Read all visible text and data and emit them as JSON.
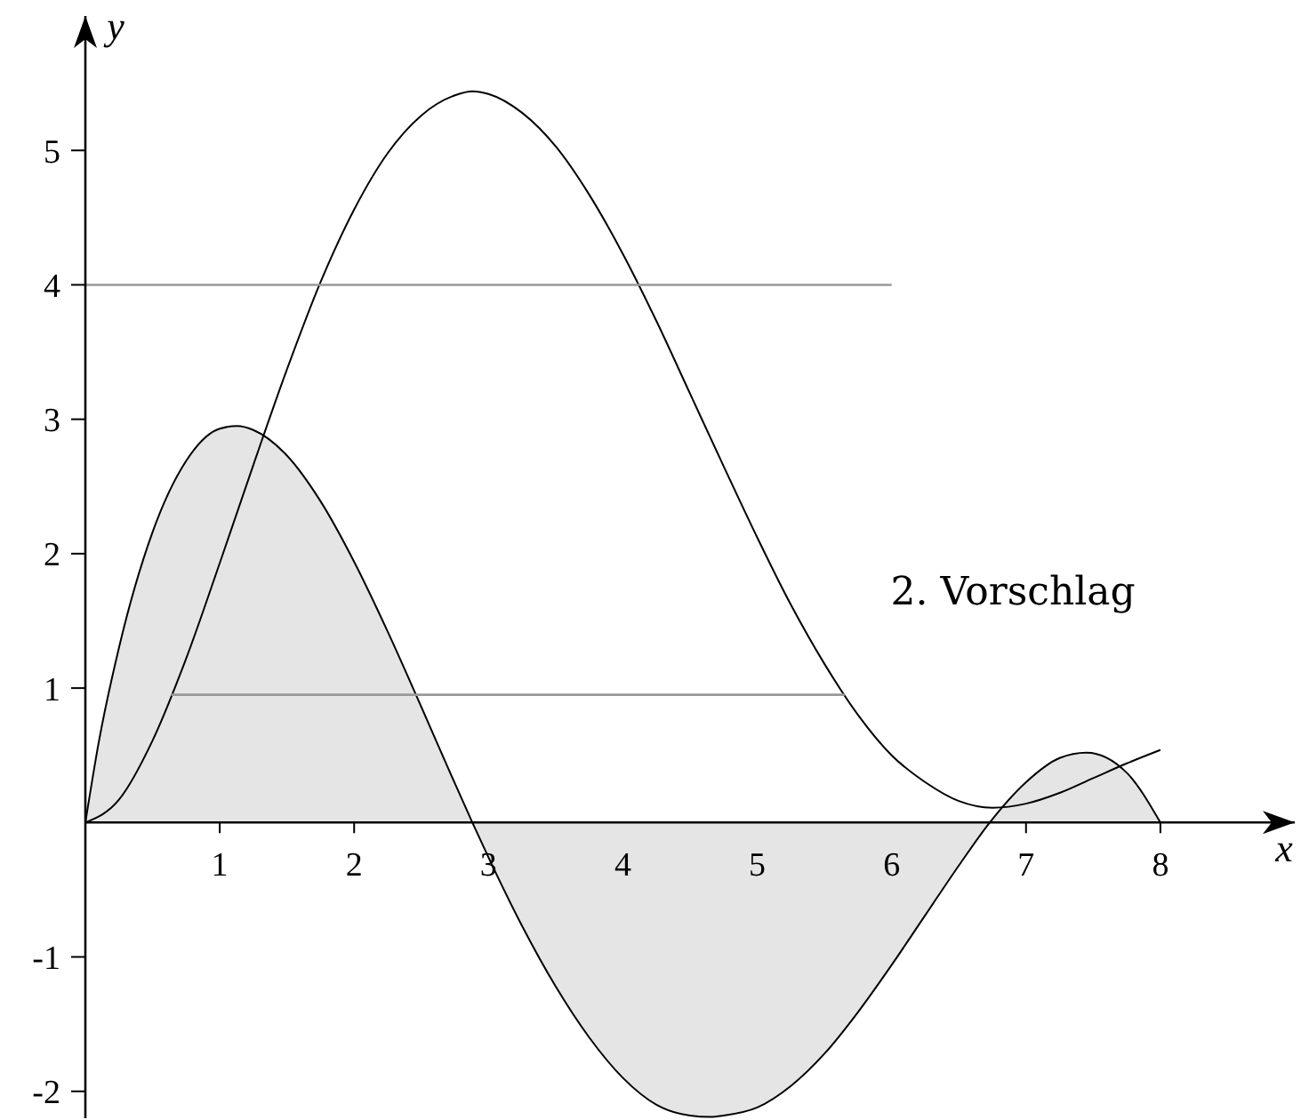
{
  "chart_data": {
    "type": "line",
    "xlabel": "x",
    "ylabel": "y",
    "annotations": [
      "2. Vorschlag"
    ],
    "xlim": [
      0,
      9
    ],
    "ylim": [
      -2.2,
      6
    ],
    "xticks": [
      1,
      2,
      3,
      4,
      5,
      6,
      7,
      8
    ],
    "yticks": [
      -2,
      -1,
      1,
      2,
      3,
      4,
      5
    ],
    "series": [
      {
        "type": "area",
        "color": "#e5e5e5",
        "x": [
          0,
          0.1,
          0.25,
          0.5,
          0.75,
          1,
          1.13,
          1.25,
          1.5,
          1.75,
          2,
          2.25,
          2.5,
          2.75,
          2.88,
          3,
          3.25,
          3.5,
          3.75,
          4,
          4.25,
          4.5,
          4.65,
          4.75,
          5,
          5.25,
          5.5,
          5.75,
          6,
          6.25,
          6.5,
          6.73,
          7,
          7.25,
          7.45,
          7.75,
          8
        ],
        "values": [
          0,
          0.6,
          1.3,
          2.16,
          2.69,
          2.93,
          2.95,
          2.92,
          2.73,
          2.39,
          1.94,
          1.42,
          0.86,
          0.29,
          0,
          -0.26,
          -0.77,
          -1.22,
          -1.6,
          -1.9,
          -2.1,
          -2.18,
          -2.19,
          -2.18,
          -2.12,
          -1.96,
          -1.72,
          -1.41,
          -1.06,
          -0.69,
          -0.32,
          0,
          0.3,
          0.48,
          0.52,
          0.37,
          0
        ]
      },
      {
        "color": "#000000",
        "x": [
          0,
          0.25,
          0.5,
          0.75,
          1,
          1.25,
          1.5,
          1.75,
          2,
          2.25,
          2.5,
          2.75,
          2.88,
          3,
          3.25,
          3.5,
          3.75,
          4,
          4.25,
          4.5,
          4.75,
          5,
          5.25,
          5.5,
          5.75,
          6,
          6.25,
          6.5,
          6.75,
          7,
          7.25,
          7.5,
          7.75,
          8
        ],
        "values": [
          0,
          0.17,
          0.61,
          1.22,
          1.93,
          2.66,
          3.37,
          4.02,
          4.56,
          4.98,
          5.26,
          5.41,
          5.44,
          5.42,
          5.28,
          5.03,
          4.67,
          4.23,
          3.73,
          3.19,
          2.65,
          2.12,
          1.62,
          1.18,
          0.8,
          0.5,
          0.3,
          0.16,
          0.11,
          0.14,
          0.22,
          0.33,
          0.44,
          0.54
        ]
      },
      {
        "color": "#999999",
        "x": [
          0,
          6
        ],
        "values": [
          4,
          4
        ]
      },
      {
        "color": "#999999",
        "x": [
          0.64,
          5.65
        ],
        "values": [
          0.95,
          0.95
        ]
      }
    ]
  }
}
